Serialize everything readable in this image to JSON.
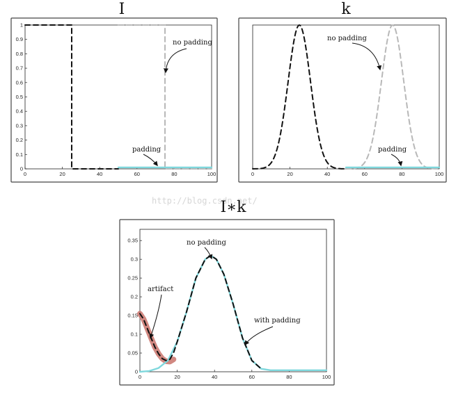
{
  "watermark": "http://blog.csdn.net/",
  "colors": {
    "dark": "#111111",
    "gray": "#b8b8b8",
    "cyan": "#7fd8dd",
    "artifact": "#c9736b"
  },
  "chart_data": [
    {
      "type": "line",
      "title": "I",
      "xlabel": "",
      "ylabel": "",
      "xlim": [
        0,
        100
      ],
      "ylim": [
        0,
        1
      ],
      "x_ticks": [
        "0",
        "20",
        "40",
        "60",
        "80",
        "100"
      ],
      "y_ticks": [
        "0",
        "0.1",
        "0.2",
        "0.3",
        "0.4",
        "0.5",
        "0.6",
        "0.7",
        "0.8",
        "0.9",
        "1"
      ],
      "series": [
        {
          "style": "dark-dashed",
          "x": [
            0,
            25,
            25,
            50
          ],
          "y": [
            1,
            1,
            0,
            0
          ]
        },
        {
          "style": "gray-dashed",
          "x": [
            50,
            75,
            75,
            100
          ],
          "y": [
            1,
            1,
            0,
            0
          ]
        },
        {
          "style": "cyan-solid",
          "x": [
            50,
            100
          ],
          "y": [
            0.01,
            0.01
          ]
        }
      ],
      "annotations": [
        {
          "text": "no padding",
          "x": 88,
          "y": 0.86
        },
        {
          "text": "padding",
          "x": 66,
          "y": 0.14
        }
      ]
    },
    {
      "type": "line",
      "title": "k",
      "xlabel": "",
      "ylabel": "",
      "xlim": [
        0,
        100
      ],
      "ylim": [
        0,
        1
      ],
      "x_ticks": [
        "0",
        "20",
        "40",
        "60",
        "80",
        "100"
      ],
      "y_ticks": [],
      "series": [
        {
          "style": "dark-dashed",
          "gaussian": {
            "center": 25,
            "sigma": 6,
            "amplitude": 1
          },
          "x_range": [
            0,
            50
          ]
        },
        {
          "style": "gray-dashed",
          "gaussian": {
            "center": 75,
            "sigma": 6,
            "amplitude": 1
          },
          "x_range": [
            50,
            100
          ]
        },
        {
          "style": "cyan-solid",
          "x": [
            50,
            100
          ],
          "y": [
            0.01,
            0.01
          ]
        }
      ],
      "annotations": [
        {
          "text": "no padding",
          "x": 52,
          "y": 0.88
        },
        {
          "text": "padding",
          "x": 78,
          "y": 0.14
        }
      ]
    },
    {
      "type": "line",
      "title": "I∗k",
      "xlabel": "",
      "ylabel": "",
      "xlim": [
        0,
        100
      ],
      "ylim": [
        0,
        0.38
      ],
      "x_ticks": [
        "0",
        "20",
        "40",
        "60",
        "80",
        "100"
      ],
      "y_ticks": [
        "0",
        "0.05",
        "0.1",
        "0.15",
        "0.2",
        "0.25",
        "0.3",
        "0.35"
      ],
      "series": [
        {
          "style": "artifact-thick",
          "x": [
            0,
            2,
            4,
            6,
            8,
            10,
            12,
            14,
            16,
            18
          ],
          "y": [
            0.155,
            0.14,
            0.115,
            0.09,
            0.066,
            0.048,
            0.035,
            0.028,
            0.027,
            0.033
          ]
        },
        {
          "style": "cyan-solid",
          "x": [
            0,
            5,
            10,
            15,
            20,
            25,
            30,
            35,
            38,
            41,
            45,
            50,
            55,
            60,
            65,
            70,
            80,
            90,
            100
          ],
          "y": [
            0.0,
            0.002,
            0.01,
            0.03,
            0.08,
            0.16,
            0.25,
            0.3,
            0.31,
            0.3,
            0.26,
            0.18,
            0.09,
            0.03,
            0.008,
            0.004,
            0.004,
            0.004,
            0.004
          ]
        },
        {
          "style": "dark-dashed",
          "x": [
            0,
            2,
            4,
            6,
            8,
            10,
            12,
            14,
            16,
            18,
            20,
            25,
            30,
            35,
            38,
            41,
            45,
            50,
            55,
            60,
            65
          ],
          "y": [
            0.155,
            0.14,
            0.115,
            0.09,
            0.066,
            0.048,
            0.035,
            0.03,
            0.033,
            0.05,
            0.08,
            0.16,
            0.25,
            0.3,
            0.31,
            0.3,
            0.26,
            0.18,
            0.09,
            0.03,
            0.008
          ]
        }
      ],
      "annotations": [
        {
          "text": "no padding",
          "x": 37,
          "y": 0.345
        },
        {
          "text": "artifact",
          "x": 12,
          "y": 0.195
        },
        {
          "text": "with padding",
          "x": 75,
          "y": 0.155
        }
      ]
    }
  ]
}
